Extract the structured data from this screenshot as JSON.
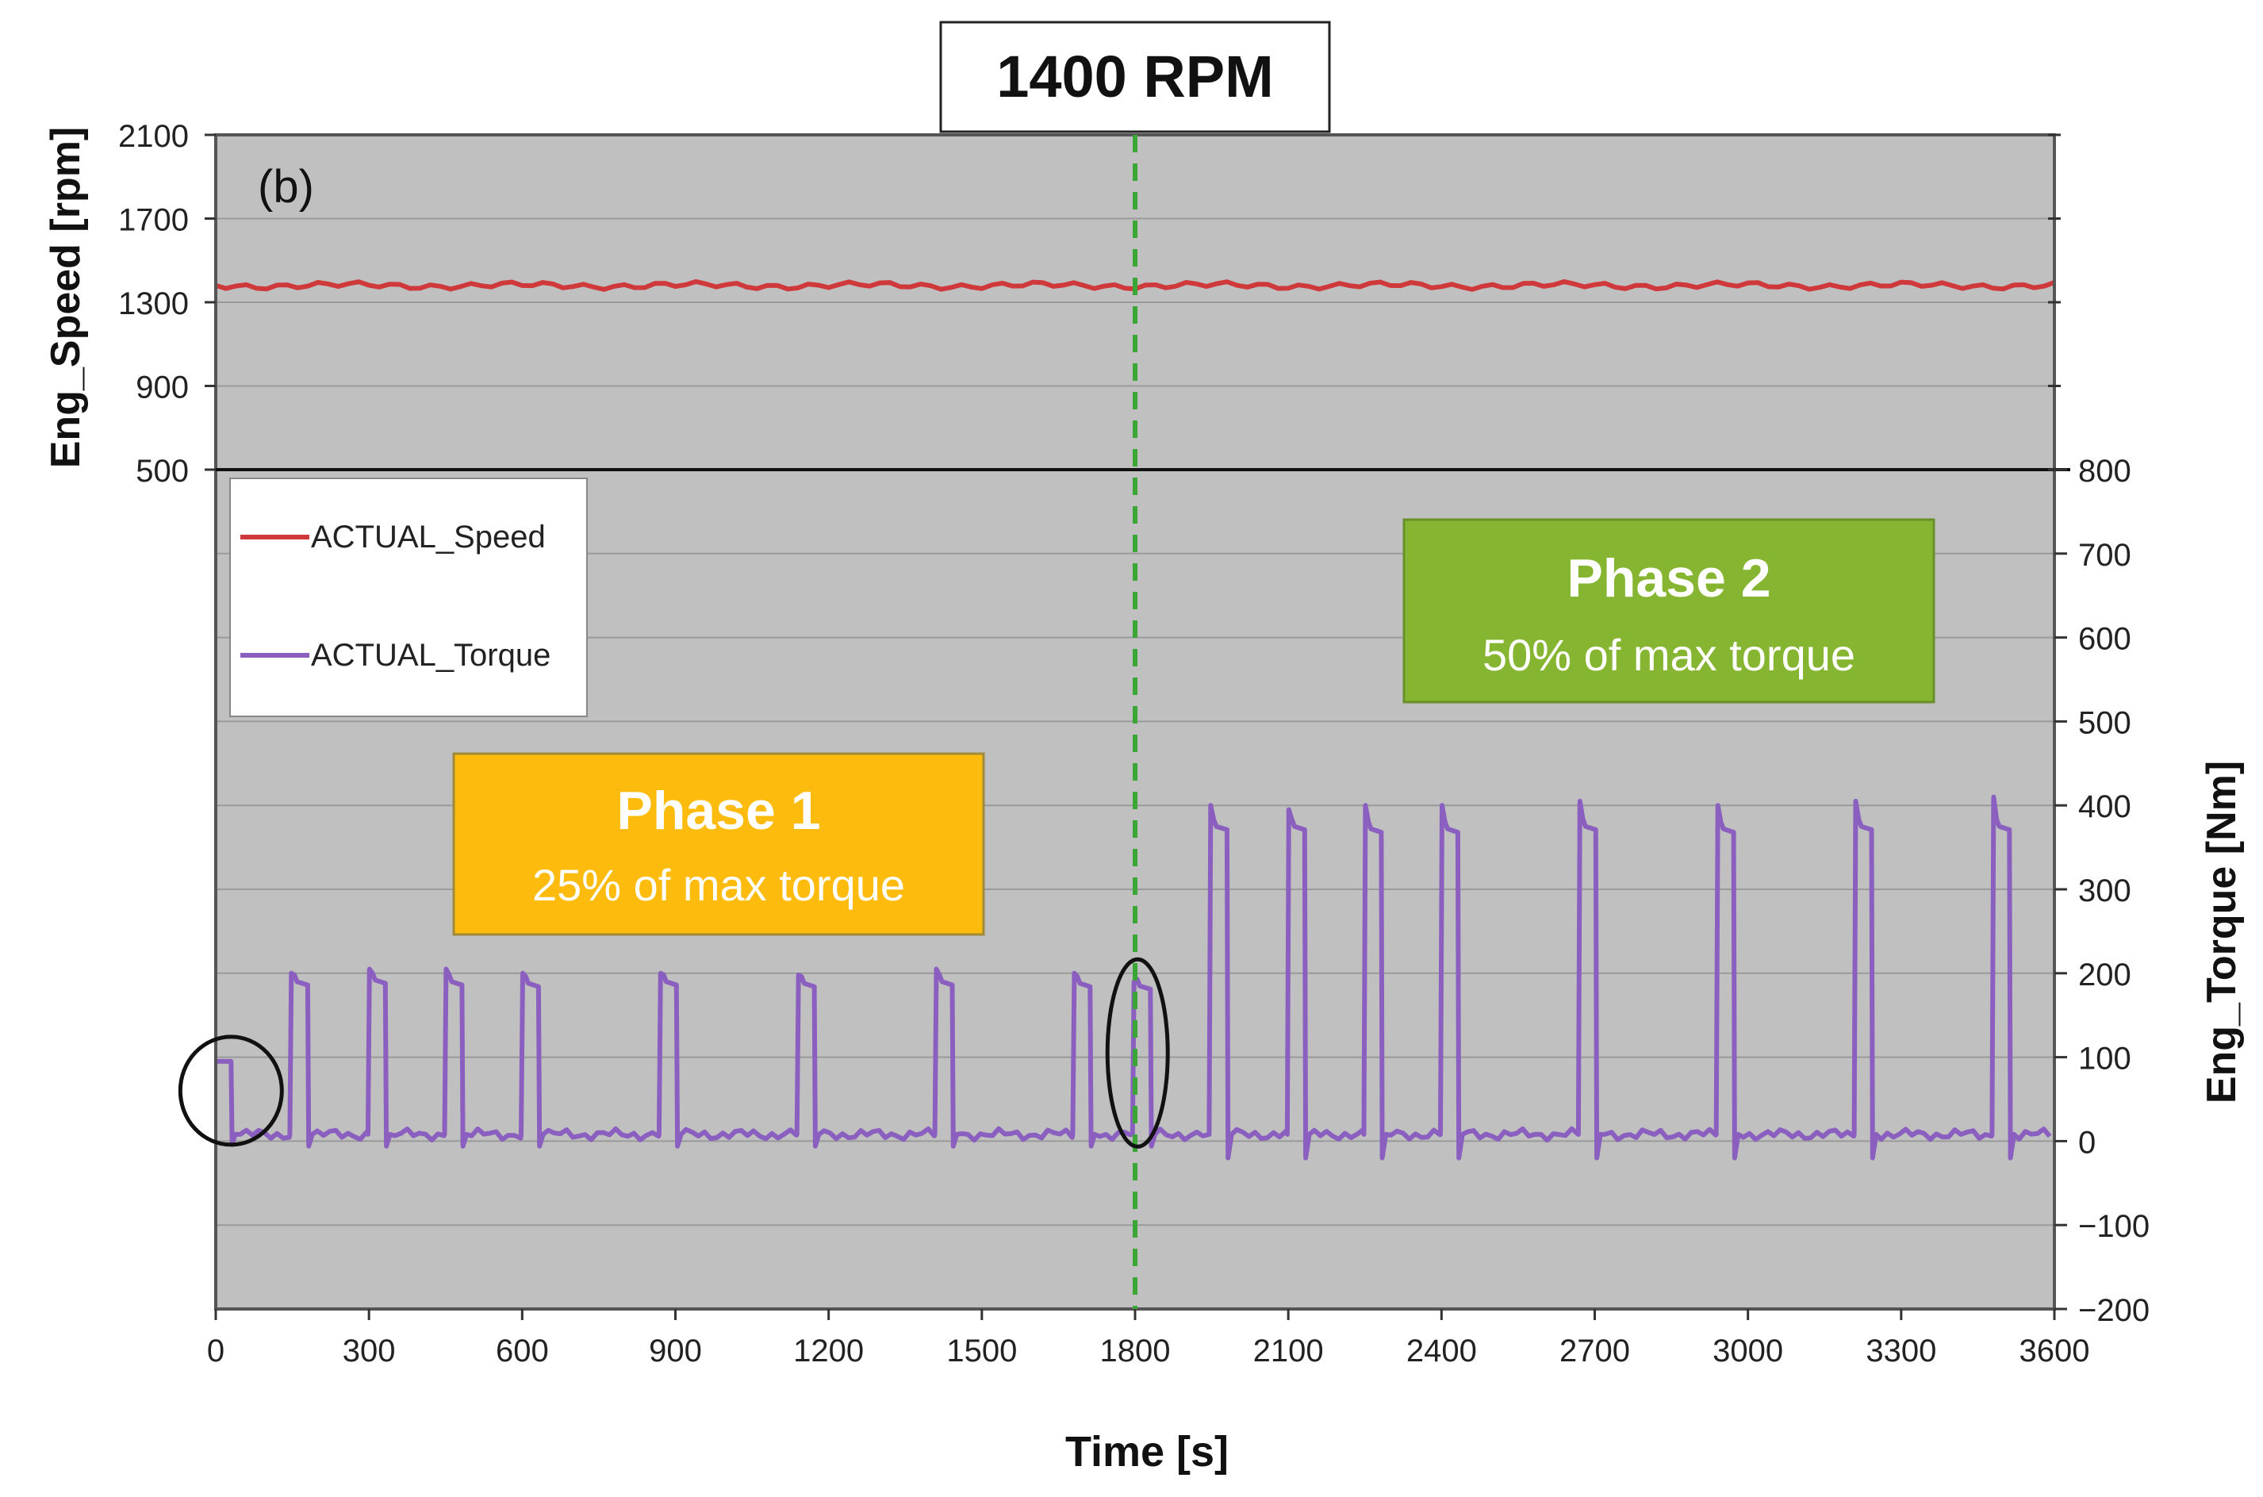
{
  "chart_data": {
    "type": "line",
    "title": "1400 RPM",
    "panel_label": "(b)",
    "xlabel": "Time [s]",
    "ylabel_left": "Eng_Speed [rpm]",
    "ylabel_right": "Eng_Torque [Nm]",
    "xlim": [
      0,
      3600
    ],
    "x_ticks": [
      "0",
      "300",
      "600",
      "900",
      "1200",
      "1500",
      "1800",
      "2100",
      "2400",
      "2700",
      "3000",
      "3300",
      "3600"
    ],
    "speed_axis": {
      "range": [
        500,
        2100
      ],
      "ticks": [
        "2100",
        "1700",
        "1300",
        "900",
        "500"
      ]
    },
    "torque_axis": {
      "range": [
        -200,
        800
      ],
      "ticks": [
        "800",
        "700",
        "600",
        "500",
        "400",
        "300",
        "200",
        "100",
        "0",
        "−100",
        "−200"
      ]
    },
    "grid": true,
    "legend": {
      "placement": "left",
      "entries": [
        "ACTUAL_Speed",
        "ACTUAL_Torque"
      ]
    },
    "series": [
      {
        "name": "ACTUAL_Speed",
        "color": "#d0393b",
        "constant": 1380,
        "x_range": [
          0,
          3600
        ]
      },
      {
        "name": "ACTUAL_Torque",
        "color": "#8b5fbf",
        "baseline": 8,
        "initial_block": {
          "start": 0,
          "end": 30,
          "level": 95
        },
        "pulses": [
          {
            "start": 145,
            "end": 180,
            "peak": 200,
            "plateau": 190
          },
          {
            "start": 298,
            "end": 332,
            "peak": 205,
            "plateau": 192
          },
          {
            "start": 448,
            "end": 482,
            "peak": 205,
            "plateau": 190
          },
          {
            "start": 598,
            "end": 632,
            "peak": 200,
            "plateau": 188
          },
          {
            "start": 868,
            "end": 902,
            "peak": 200,
            "plateau": 190
          },
          {
            "start": 1138,
            "end": 1172,
            "peak": 198,
            "plateau": 188
          },
          {
            "start": 1408,
            "end": 1442,
            "peak": 205,
            "plateau": 190
          },
          {
            "start": 1678,
            "end": 1712,
            "peak": 200,
            "plateau": 188
          },
          {
            "start": 1795,
            "end": 1830,
            "peak": 190,
            "plateau": 185
          },
          {
            "start": 1945,
            "end": 1980,
            "peak": 400,
            "plateau": 375
          },
          {
            "start": 2098,
            "end": 2132,
            "peak": 395,
            "plateau": 375
          },
          {
            "start": 2248,
            "end": 2282,
            "peak": 400,
            "plateau": 372
          },
          {
            "start": 2398,
            "end": 2432,
            "peak": 400,
            "plateau": 372
          },
          {
            "start": 2668,
            "end": 2702,
            "peak": 405,
            "plateau": 375
          },
          {
            "start": 2938,
            "end": 2972,
            "peak": 400,
            "plateau": 372
          },
          {
            "start": 3208,
            "end": 3242,
            "peak": 405,
            "plateau": 375
          },
          {
            "start": 3478,
            "end": 3512,
            "peak": 410,
            "plateau": 375
          }
        ]
      }
    ],
    "annotations": {
      "phase1": {
        "title": "Phase 1",
        "subtitle": "25% of max torque",
        "color": "#fdbb0e"
      },
      "phase2": {
        "title": "Phase 2",
        "subtitle": "50% of max torque",
        "color": "#86b531"
      },
      "divider_x": 1800,
      "divider_color": "#3aa635",
      "highlight_circles": [
        {
          "x_center": 30,
          "torque_center": 60
        },
        {
          "x_center": 1805,
          "torque_center": 105
        }
      ]
    }
  }
}
